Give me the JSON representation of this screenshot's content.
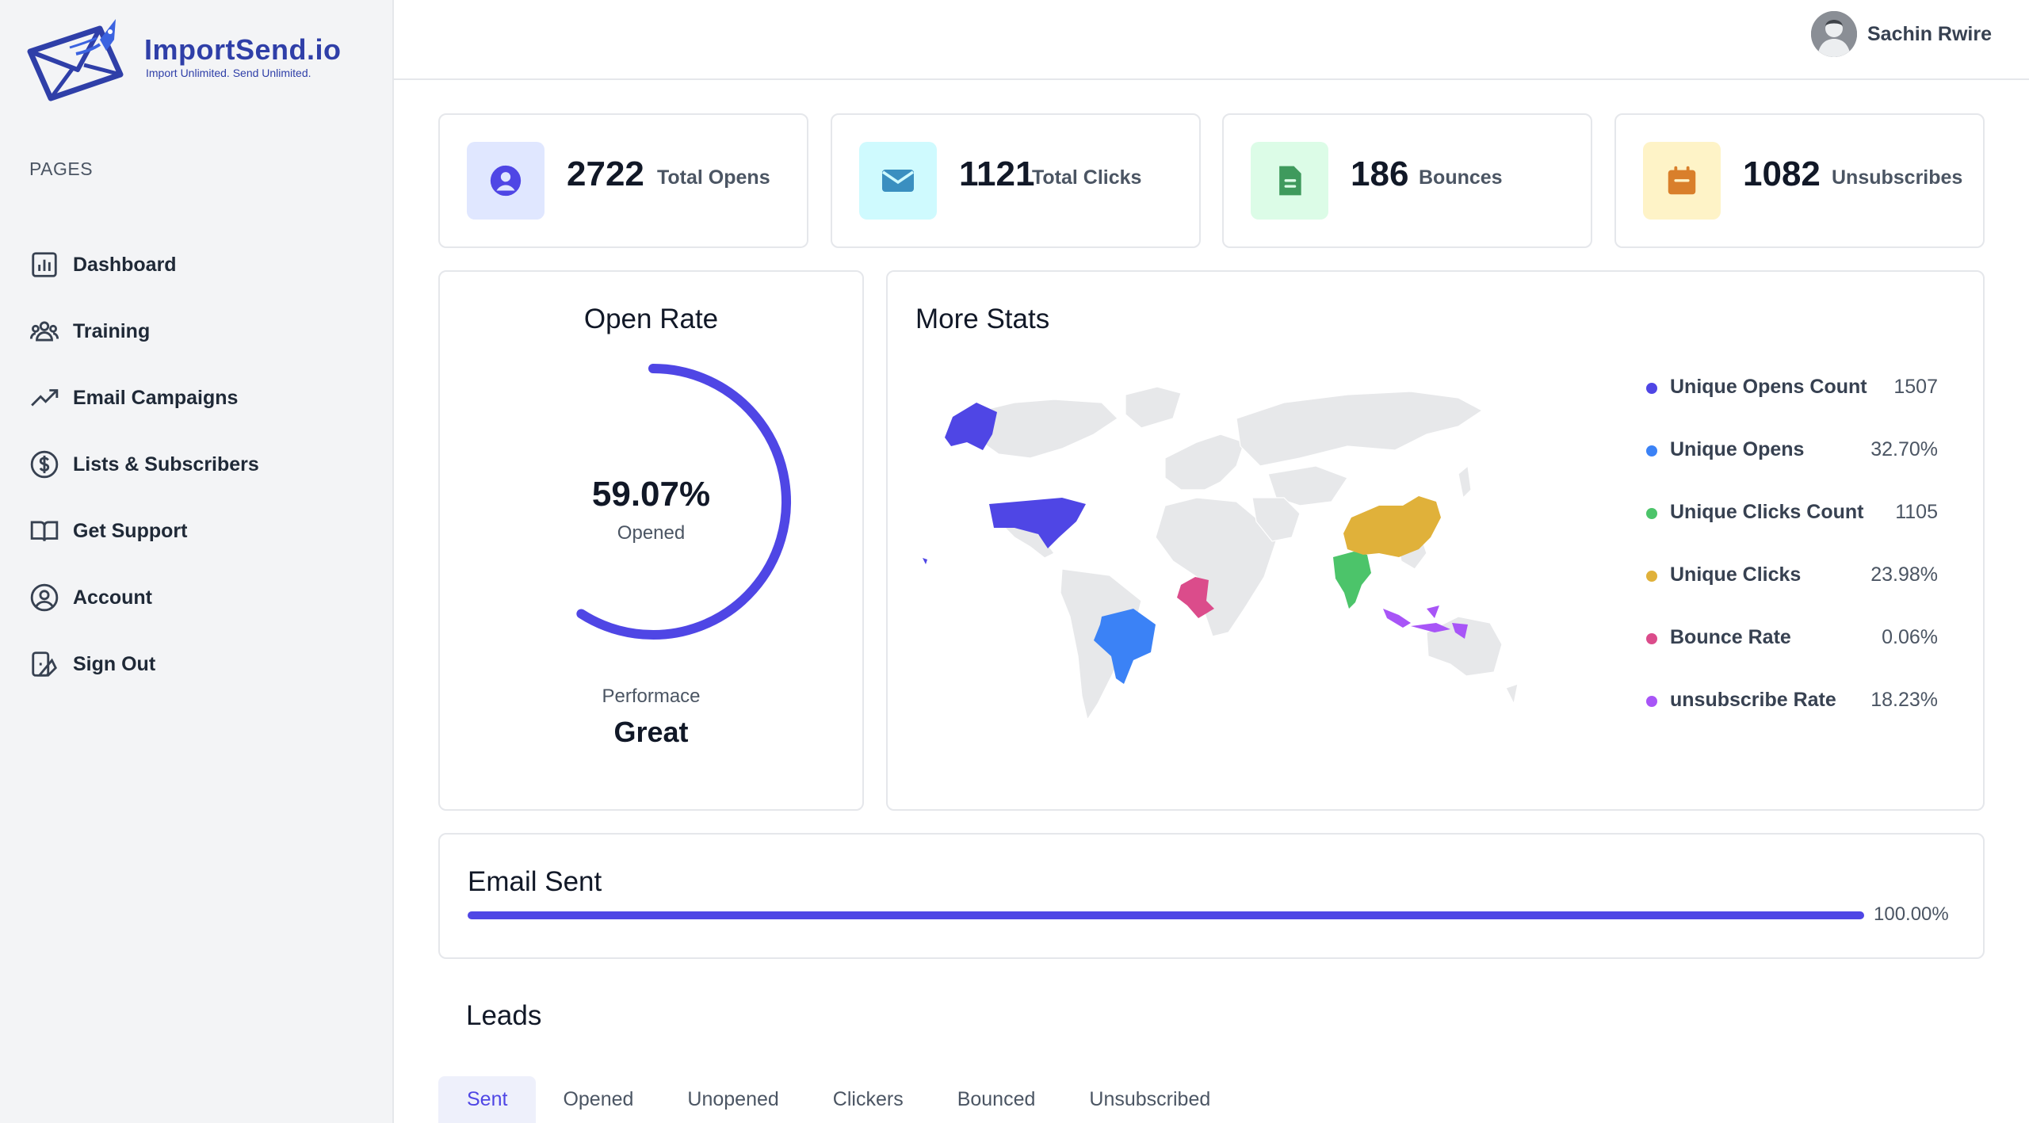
{
  "app": {
    "logo_title": "ImportSend.io",
    "logo_subtitle": "Import Unlimited. Send Unlimited."
  },
  "sidebar": {
    "section_label": "PAGES",
    "items": [
      {
        "label": "Dashboard",
        "icon": "bar-chart-icon"
      },
      {
        "label": "Training",
        "icon": "users-icon"
      },
      {
        "label": "Email Campaigns",
        "icon": "trending-up-icon"
      },
      {
        "label": "Lists & Subscribers",
        "icon": "dollar-circle-icon"
      },
      {
        "label": "Get Support",
        "icon": "book-open-icon"
      },
      {
        "label": "Account",
        "icon": "user-circle-icon"
      },
      {
        "label": "Sign Out",
        "icon": "sign-out-icon"
      }
    ]
  },
  "header": {
    "user_name": "Sachin Rwire"
  },
  "stats": [
    {
      "value": "2722",
      "label": "Total Opens",
      "icon": "user-circle-icon",
      "icon_bg": "#e0e7ff",
      "icon_color": "#4f46e5"
    },
    {
      "value": "1121",
      "label": "Total Clicks",
      "icon": "envelope-icon",
      "icon_bg": "#cffafe",
      "icon_color": "#3a8fc0"
    },
    {
      "value": "186",
      "label": "Bounces",
      "icon": "document-icon",
      "icon_bg": "#dcfce7",
      "icon_color": "#3f9a5d"
    },
    {
      "value": "1082",
      "label": "Unsubscribes",
      "icon": "calendar-icon",
      "icon_bg": "#fef3c7",
      "icon_color": "#d97f2b"
    }
  ],
  "open_rate": {
    "title": "Open Rate",
    "percent_label": "59.07%",
    "percent": 59.07,
    "sub_label": "Opened",
    "performance_label": "Performace",
    "performance_value": "Great",
    "color": "#4f46e5"
  },
  "more_stats": {
    "title": "More Stats",
    "legend": [
      {
        "name": "Unique Opens Count",
        "value": "1507",
        "color": "#4f46e5"
      },
      {
        "name": "Unique Opens",
        "value": "32.70%",
        "color": "#3b82f6"
      },
      {
        "name": "Unique Clicks Count",
        "value": "1105",
        "color": "#4cc46a"
      },
      {
        "name": "Unique Clicks",
        "value": "23.98%",
        "color": "#e0b13a"
      },
      {
        "name": "Bounce Rate",
        "value": "0.06%",
        "color": "#db4c8b"
      },
      {
        "name": "unsubscribe Rate",
        "value": "18.23%",
        "color": "#a855f7"
      }
    ]
  },
  "email_sent": {
    "title": "Email Sent",
    "percent_label": "100.00%",
    "percent": 100
  },
  "leads": {
    "title": "Leads",
    "tabs": [
      "Sent",
      "Opened",
      "Unopened",
      "Clickers",
      "Bounced",
      "Unsubscribed"
    ],
    "active_tab": "Sent"
  }
}
